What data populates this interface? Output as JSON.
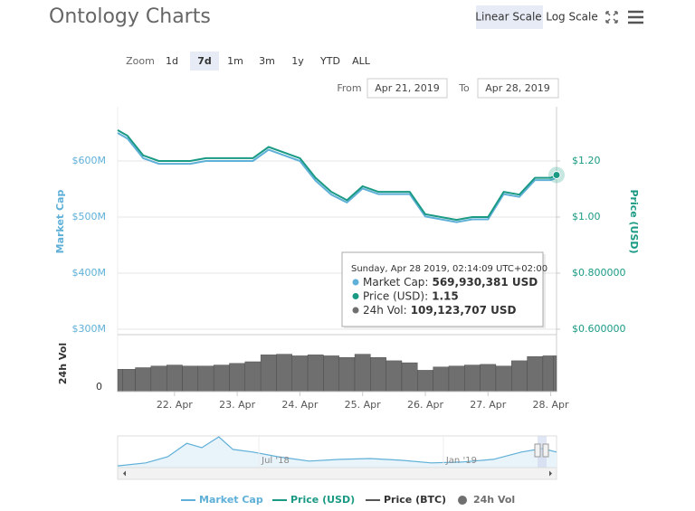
{
  "chart_data": {
    "type": "line",
    "title": "Ontology Charts",
    "scale_buttons": [
      "Linear Scale",
      "Log Scale"
    ],
    "zoom_label": "Zoom",
    "zoom_buttons": [
      "1d",
      "7d",
      "1m",
      "3m",
      "1y",
      "YTD",
      "ALL"
    ],
    "selected_zoom": "7d",
    "range": {
      "from_label": "From",
      "from": "Apr 21, 2019",
      "to_label": "To",
      "to": "Apr 28, 2019"
    },
    "y_label": "Market Cap",
    "y2_label": "Price (USD)",
    "x": [
      "2019-04-21T02:14",
      "2019-04-21T06:00",
      "2019-04-21T12:00",
      "2019-04-21T18:00",
      "2019-04-22T00:00",
      "2019-04-22T06:00",
      "2019-04-22T12:00",
      "2019-04-22T18:00",
      "2019-04-23T00:00",
      "2019-04-23T06:00",
      "2019-04-23T12:00",
      "2019-04-23T18:00",
      "2019-04-24T00:00",
      "2019-04-24T06:00",
      "2019-04-24T12:00",
      "2019-04-24T18:00",
      "2019-04-25T00:00",
      "2019-04-25T06:00",
      "2019-04-25T12:00",
      "2019-04-25T18:00",
      "2019-04-26T00:00",
      "2019-04-26T06:00",
      "2019-04-26T12:00",
      "2019-04-26T18:00",
      "2019-04-27T00:00",
      "2019-04-27T06:00",
      "2019-04-27T12:00",
      "2019-04-27T18:00",
      "2019-04-28T00:00",
      "2019-04-28T02:14"
    ],
    "xlim": [
      "2019-04-21T02:14",
      "2019-04-28T02:14"
    ],
    "xticks": [
      {
        "value": "2019-04-22T00:00",
        "label": "22. Apr"
      },
      {
        "value": "2019-04-23T00:00",
        "label": "23. Apr"
      },
      {
        "value": "2019-04-24T00:00",
        "label": "24. Apr"
      },
      {
        "value": "2019-04-25T00:00",
        "label": "25. Apr"
      },
      {
        "value": "2019-04-26T00:00",
        "label": "26. Apr"
      },
      {
        "value": "2019-04-27T00:00",
        "label": "27. Apr"
      },
      {
        "value": "2019-04-28T00:00",
        "label": "28. Apr"
      }
    ],
    "ylim": [
      293500000,
      696800000
    ],
    "yticks": [
      {
        "value": 600000000,
        "label": "$600M"
      },
      {
        "value": 500000000,
        "label": "$500M"
      },
      {
        "value": 400000000,
        "label": "$400M"
      },
      {
        "value": 300000000,
        "label": "$300M"
      }
    ],
    "y2lim": [
      0.587,
      1.3935
    ],
    "y2ticks": [
      {
        "value": 1.2,
        "label": "$1.20"
      },
      {
        "value": 1.0,
        "label": "$1.00"
      },
      {
        "value": 0.8,
        "label": "$0.800000"
      },
      {
        "value": 0.6,
        "label": "$0.600000"
      }
    ],
    "grid": true,
    "series": [
      {
        "name": "Market Cap",
        "color": "#5fb0d8",
        "values": [
          650000000,
          640000000,
          605000000,
          595000000,
          595000000,
          595000000,
          600000000,
          600000000,
          600000000,
          600000000,
          620000000,
          610000000,
          600000000,
          565000000,
          540000000,
          526000000,
          551000000,
          541000000,
          541000000,
          541000000,
          501000000,
          496000000,
          491000000,
          496000000,
          496000000,
          541000000,
          536000000,
          566000000,
          566000000,
          569930381
        ]
      },
      {
        "name": "Price (USD)",
        "color": "#1a9a84",
        "axis": "y2",
        "values": [
          1.31,
          1.29,
          1.22,
          1.2,
          1.2,
          1.2,
          1.21,
          1.21,
          1.21,
          1.21,
          1.25,
          1.23,
          1.21,
          1.14,
          1.09,
          1.06,
          1.11,
          1.09,
          1.09,
          1.09,
          1.01,
          1.0,
          0.99,
          1.0,
          1.0,
          1.09,
          1.08,
          1.14,
          1.14,
          1.15
        ]
      }
    ],
    "hidden_series": [
      {
        "name": "Price (BTC)",
        "color": "#555555"
      }
    ],
    "volume": {
      "name": "24h Vol",
      "label": "24h Vol",
      "color": "#6f6f6f",
      "values": [
        68000000,
        68000000,
        73000000,
        78000000,
        81000000,
        78000000,
        78000000,
        81000000,
        86000000,
        91000000,
        112000000,
        114000000,
        109000000,
        112000000,
        109000000,
        104000000,
        114000000,
        104000000,
        94000000,
        88000000,
        65000000,
        75000000,
        78000000,
        81000000,
        83000000,
        78000000,
        94000000,
        107000000,
        109000000,
        109123707
      ],
      "ylim": [
        0,
        168000000
      ],
      "yticks": [
        0
      ]
    },
    "navigator": {
      "x": [
        "2018-02-10",
        "2018-03-10",
        "2018-04-01",
        "2018-04-20",
        "2018-05-05",
        "2018-05-22",
        "2018-06-05",
        "2018-06-25",
        "2018-07-20",
        "2018-08-20",
        "2018-09-20",
        "2018-10-20",
        "2018-11-20",
        "2018-12-20",
        "2019-01-20",
        "2019-02-20",
        "2019-03-20",
        "2019-04-10",
        "2019-04-24"
      ],
      "values": [
        31,
        38,
        52,
        83,
        73,
        98,
        69,
        63,
        52,
        42,
        46,
        48,
        44,
        38,
        40,
        46,
        63,
        71,
        63
      ],
      "xlim": [
        "2018-02-10",
        "2019-04-24"
      ],
      "ylim": [
        0,
        100
      ],
      "xticks": [
        {
          "value": "2018-07-01",
          "label": "Jul '18"
        },
        {
          "value": "2019-01-01",
          "label": "Jan '19"
        }
      ]
    },
    "tooltip": {
      "title": "Sunday, Apr 28 2019, 02:14:09 UTC+02:00",
      "rows": [
        {
          "label": "Market Cap:",
          "value": "569,930,381 USD",
          "color": "#5fb0d8"
        },
        {
          "label": "Price (USD):",
          "value": "1.15",
          "color": "#1a9a84"
        },
        {
          "label": "24h Vol:",
          "value": "109,123,707 USD",
          "color": "#6f6f6f"
        }
      ]
    }
  }
}
